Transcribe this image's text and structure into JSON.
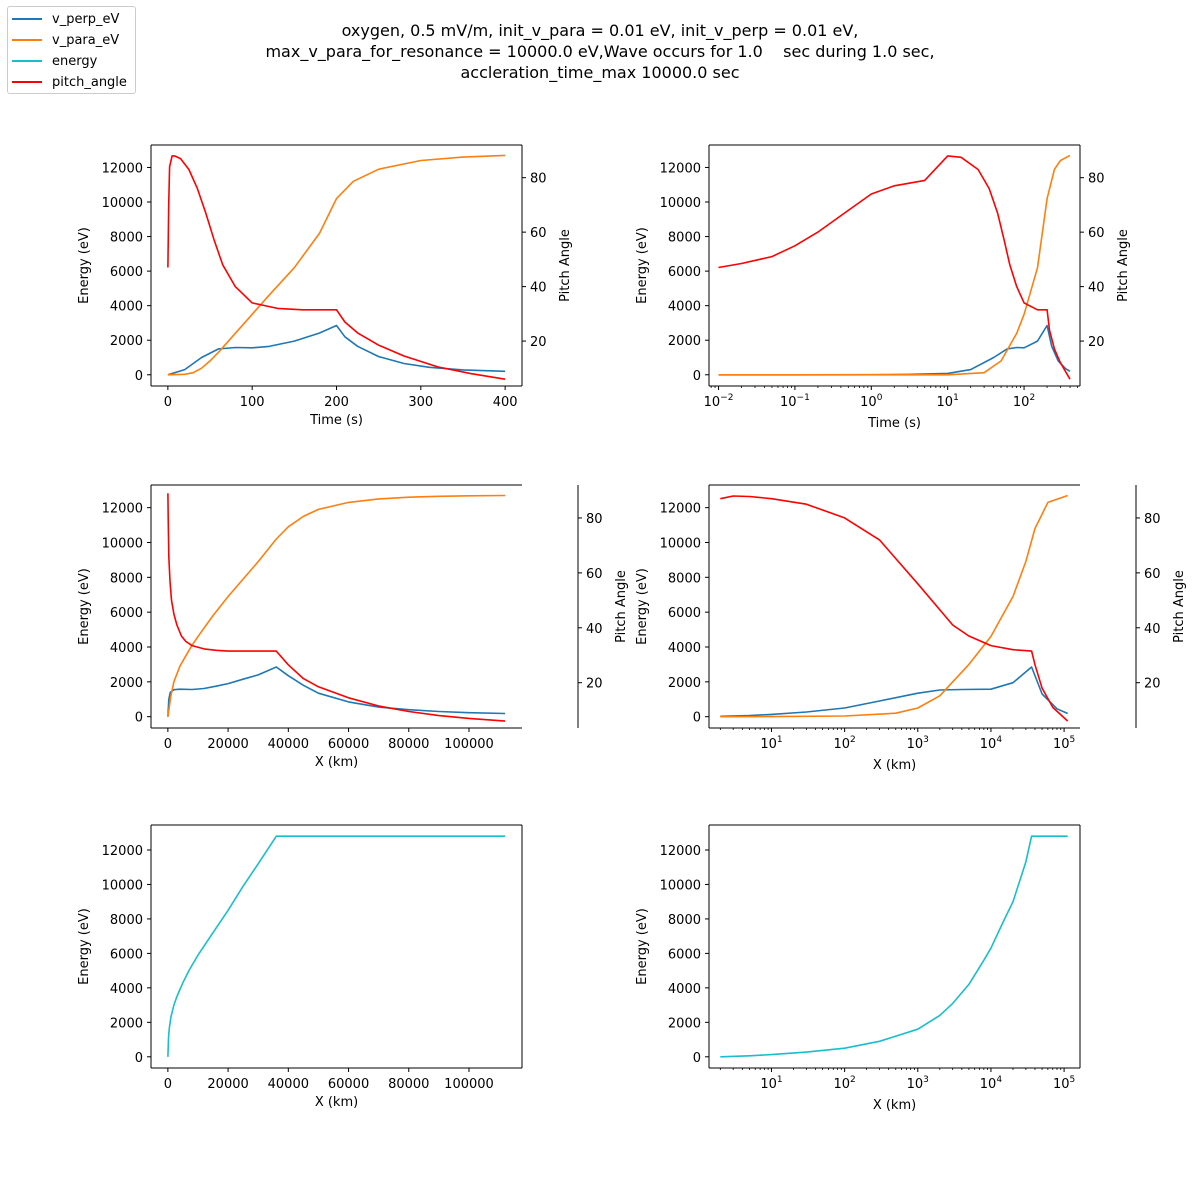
{
  "title_lines": [
    "oxygen, 0.5 mV/m, init_v_para = 0.01 eV, init_v_perp = 0.01 eV,",
    "max_v_para_for_resonance = 10000.0 eV,Wave occurs for 1.0    sec during 1.0 sec,",
    "accleration_time_max 10000.0 sec"
  ],
  "legend": [
    {
      "label": "v_perp_eV",
      "color": "#1f77b4"
    },
    {
      "label": "v_para_eV",
      "color": "#ff7f0e"
    },
    {
      "label": "energy",
      "color": "#17becf"
    },
    {
      "label": "pitch_angle",
      "color": "#ff0000"
    }
  ],
  "colors": {
    "v_perp": "#1f77b4",
    "v_para": "#ff7f0e",
    "energy": "#17becf",
    "pitch": "#ff0000"
  },
  "chart_data": [
    {
      "type": "line",
      "panel": "top-left",
      "xlabel": "Time (s)",
      "ylabel": "Energy (eV)",
      "y2label": "Pitch Angle",
      "xscale": "linear",
      "xlim": [
        -20,
        420
      ],
      "ylim": [
        -650,
        13300
      ],
      "y2lim": [
        3.5,
        92
      ],
      "xticks": [
        0,
        100,
        200,
        300,
        400
      ],
      "xticklabels": [
        "0",
        "100",
        "200",
        "300",
        "400"
      ],
      "yticks": [
        0,
        2000,
        4000,
        6000,
        8000,
        10000,
        12000
      ],
      "yticklabels": [
        "0",
        "2000",
        "4000",
        "6000",
        "8000",
        "10000",
        "12000"
      ],
      "y2ticks": [
        20,
        40,
        60,
        80
      ],
      "y2ticklabels": [
        "20",
        "40",
        "60",
        "80"
      ],
      "series": [
        {
          "key": "v_perp",
          "axis": "left",
          "x": [
            0,
            20,
            40,
            60,
            80,
            100,
            120,
            150,
            180,
            200,
            210,
            225,
            250,
            280,
            310,
            350,
            400
          ],
          "y": [
            0,
            300,
            1000,
            1500,
            1580,
            1560,
            1640,
            1950,
            2420,
            2850,
            2200,
            1650,
            1050,
            650,
            430,
            280,
            200
          ]
        },
        {
          "key": "v_para",
          "axis": "left",
          "x": [
            0,
            20,
            30,
            40,
            50,
            60,
            80,
            100,
            120,
            150,
            180,
            200,
            220,
            250,
            300,
            350,
            400
          ],
          "y": [
            0,
            30,
            120,
            380,
            800,
            1300,
            2400,
            3500,
            4600,
            6200,
            8200,
            10200,
            11200,
            11900,
            12400,
            12600,
            12700
          ]
        },
        {
          "key": "pitch",
          "axis": "right",
          "x": [
            0,
            1,
            2,
            5,
            8,
            15,
            25,
            35,
            45,
            55,
            65,
            80,
            100,
            130,
            160,
            195,
            200,
            210,
            225,
            250,
            280,
            320,
            360,
            400
          ],
          "y": [
            47,
            70,
            84,
            88,
            88,
            87,
            83,
            76,
            67,
            57,
            48,
            40,
            34,
            32,
            31.5,
            31.5,
            31.5,
            27,
            23,
            18.5,
            14.5,
            10.5,
            8,
            6
          ]
        }
      ]
    },
    {
      "type": "line",
      "panel": "top-right",
      "xlabel": "Time (s)",
      "ylabel": "Energy (eV)",
      "y2label": "Pitch Angle",
      "xscale": "log",
      "xlim": [
        0.0075,
        540
      ],
      "ylim": [
        -650,
        13300
      ],
      "y2lim": [
        3.5,
        92
      ],
      "xticks": [
        0.01,
        0.1,
        1,
        10,
        100
      ],
      "xticklabels": [
        "10^-2",
        "10^-1",
        "10^0",
        "10^1",
        "10^2"
      ],
      "yticks": [
        0,
        2000,
        4000,
        6000,
        8000,
        10000,
        12000
      ],
      "yticklabels": [
        "0",
        "2000",
        "4000",
        "6000",
        "8000",
        "10000",
        "12000"
      ],
      "y2ticks": [
        20,
        40,
        60,
        80
      ],
      "y2ticklabels": [
        "20",
        "40",
        "60",
        "80"
      ],
      "series": [
        {
          "key": "v_perp",
          "axis": "left",
          "x": [
            0.01,
            0.1,
            1,
            3,
            10,
            20,
            40,
            60,
            80,
            100,
            150,
            200,
            230,
            280,
            350,
            400
          ],
          "y": [
            0,
            0,
            5,
            20,
            80,
            300,
            1000,
            1500,
            1580,
            1560,
            1950,
            2850,
            1650,
            800,
            350,
            200
          ]
        },
        {
          "key": "v_para",
          "axis": "left",
          "x": [
            0.01,
            0.1,
            1,
            10,
            30,
            50,
            80,
            100,
            150,
            200,
            250,
            300,
            400
          ],
          "y": [
            0,
            0,
            0,
            0,
            120,
            800,
            2400,
            3500,
            6200,
            10200,
            11900,
            12400,
            12700
          ]
        },
        {
          "key": "pitch",
          "axis": "right",
          "x": [
            0.01,
            0.02,
            0.05,
            0.1,
            0.2,
            0.5,
            1,
            2,
            5,
            10,
            15,
            25,
            35,
            45,
            55,
            65,
            80,
            100,
            150,
            195,
            200,
            215,
            250,
            300,
            400
          ],
          "y": [
            47,
            48.5,
            51,
            55,
            60,
            68,
            74,
            77,
            79,
            88,
            87.5,
            83,
            76,
            67,
            57,
            48,
            40,
            34,
            31.5,
            31.5,
            31.5,
            24,
            17,
            12,
            6
          ]
        }
      ]
    },
    {
      "type": "line",
      "panel": "middle-left",
      "xlabel": "X (km)",
      "ylabel": "Energy (eV)",
      "y2label": "Pitch Angle",
      "xscale": "linear",
      "xlim": [
        -5600,
        117600
      ],
      "ylim": [
        -650,
        13300
      ],
      "y2lim": [
        3.5,
        92
      ],
      "xticks": [
        0,
        20000,
        40000,
        60000,
        80000,
        100000
      ],
      "xticklabels": [
        "0",
        "20000",
        "40000",
        "60000",
        "80000",
        "100000"
      ],
      "yticks": [
        0,
        2000,
        4000,
        6000,
        8000,
        10000,
        12000
      ],
      "yticklabels": [
        "0",
        "2000",
        "4000",
        "6000",
        "8000",
        "10000",
        "12000"
      ],
      "y2ticks": [
        20,
        40,
        60,
        80
      ],
      "y2ticklabels": [
        "20",
        "40",
        "60",
        "80"
      ],
      "series": [
        {
          "key": "v_perp",
          "axis": "left",
          "x": [
            0,
            300,
            800,
            2000,
            4000,
            8000,
            12000,
            16000,
            20000,
            25000,
            30000,
            36000,
            40000,
            45000,
            50000,
            60000,
            70000,
            80000,
            90000,
            100000,
            112000
          ],
          "y": [
            0,
            1000,
            1400,
            1550,
            1580,
            1560,
            1620,
            1750,
            1900,
            2150,
            2400,
            2850,
            2350,
            1800,
            1350,
            850,
            550,
            400,
            300,
            230,
            180
          ]
        },
        {
          "key": "v_para",
          "axis": "left",
          "x": [
            0,
            1000,
            2000,
            4000,
            6000,
            8000,
            10000,
            15000,
            20000,
            25000,
            30000,
            36000,
            40000,
            45000,
            50000,
            60000,
            70000,
            80000,
            90000,
            100000,
            112000
          ],
          "y": [
            0,
            1200,
            2000,
            2900,
            3500,
            4100,
            4600,
            5800,
            6900,
            7900,
            8900,
            10200,
            10900,
            11500,
            11900,
            12300,
            12500,
            12600,
            12650,
            12680,
            12700
          ]
        },
        {
          "key": "pitch",
          "axis": "right",
          "x": [
            0,
            100,
            300,
            700,
            1200,
            2000,
            3000,
            4500,
            6000,
            8000,
            12000,
            16000,
            20000,
            30000,
            36000,
            40000,
            45000,
            50000,
            60000,
            70000,
            80000,
            90000,
            100000,
            112000
          ],
          "y": [
            89,
            80,
            66,
            57,
            50,
            45,
            41,
            37,
            35,
            33.5,
            32.3,
            31.8,
            31.5,
            31.5,
            31.5,
            26.5,
            21.5,
            18.5,
            14.5,
            11.5,
            9.5,
            8,
            7,
            6
          ]
        }
      ]
    },
    {
      "type": "line",
      "panel": "middle-right",
      "xlabel": "X (km)",
      "ylabel": "Energy (eV)",
      "y2label": "Pitch Angle",
      "xscale": "log",
      "xlim": [
        1.4,
        165000
      ],
      "ylim": [
        -650,
        13300
      ],
      "y2lim": [
        3.5,
        92
      ],
      "xticks": [
        10,
        100,
        1000,
        10000,
        100000
      ],
      "xticklabels": [
        "10^1",
        "10^2",
        "10^3",
        "10^4",
        "10^5"
      ],
      "yticks": [
        0,
        2000,
        4000,
        6000,
        8000,
        10000,
        12000
      ],
      "yticklabels": [
        "0",
        "2000",
        "4000",
        "6000",
        "8000",
        "10000",
        "12000"
      ],
      "y2ticks": [
        20,
        40,
        60,
        80
      ],
      "y2ticklabels": [
        "20",
        "40",
        "60",
        "80"
      ],
      "series": [
        {
          "key": "v_perp",
          "axis": "left",
          "x": [
            2,
            5,
            10,
            30,
            100,
            300,
            1000,
            2000,
            4000,
            10000,
            20000,
            36000,
            50000,
            80000,
            112000
          ],
          "y": [
            20,
            70,
            130,
            270,
            500,
            900,
            1350,
            1530,
            1560,
            1580,
            1950,
            2850,
            1300,
            450,
            180
          ]
        },
        {
          "key": "v_para",
          "axis": "left",
          "x": [
            2,
            10,
            100,
            500,
            1000,
            2000,
            5000,
            10000,
            20000,
            30000,
            40000,
            60000,
            112000
          ],
          "y": [
            0,
            5,
            40,
            200,
            500,
            1200,
            3000,
            4600,
            6900,
            8900,
            10800,
            12300,
            12700
          ]
        },
        {
          "key": "pitch",
          "axis": "right",
          "x": [
            2,
            3,
            5,
            10,
            30,
            100,
            300,
            1000,
            3000,
            5000,
            10000,
            20000,
            36000,
            40000,
            50000,
            70000,
            112000
          ],
          "y": [
            87,
            88,
            87.8,
            87,
            85,
            80,
            72,
            56,
            41,
            37,
            33.5,
            32,
            31.5,
            26.5,
            18,
            11,
            6
          ]
        }
      ]
    },
    {
      "type": "line",
      "panel": "bottom-left",
      "xlabel": "X (km)",
      "ylabel": "Energy (eV)",
      "xscale": "linear",
      "xlim": [
        -5600,
        117600
      ],
      "ylim": [
        -650,
        13450
      ],
      "xticks": [
        0,
        20000,
        40000,
        60000,
        80000,
        100000
      ],
      "xticklabels": [
        "0",
        "20000",
        "40000",
        "60000",
        "80000",
        "100000"
      ],
      "yticks": [
        0,
        2000,
        4000,
        6000,
        8000,
        10000,
        12000
      ],
      "yticklabels": [
        "0",
        "2000",
        "4000",
        "6000",
        "8000",
        "10000",
        "12000"
      ],
      "series": [
        {
          "key": "energy",
          "axis": "left",
          "x": [
            0,
            200,
            500,
            1000,
            2000,
            3000,
            5000,
            7000,
            10000,
            15000,
            20000,
            25000,
            30000,
            36000,
            50000,
            80000,
            112000
          ],
          "y": [
            0,
            1100,
            1700,
            2300,
            3000,
            3500,
            4300,
            5000,
            5900,
            7200,
            8500,
            9900,
            11200,
            12800,
            12800,
            12800,
            12800
          ]
        }
      ]
    },
    {
      "type": "line",
      "panel": "bottom-right",
      "xlabel": "X (km)",
      "ylabel": "Energy (eV)",
      "xscale": "log",
      "xlim": [
        1.4,
        165000
      ],
      "ylim": [
        -650,
        13450
      ],
      "xticks": [
        10,
        100,
        1000,
        10000,
        100000
      ],
      "xticklabels": [
        "10^1",
        "10^2",
        "10^3",
        "10^4",
        "10^5"
      ],
      "yticks": [
        0,
        2000,
        4000,
        6000,
        8000,
        10000,
        12000
      ],
      "yticklabels": [
        "0",
        "2000",
        "4000",
        "6000",
        "8000",
        "10000",
        "12000"
      ],
      "series": [
        {
          "key": "energy",
          "axis": "left",
          "x": [
            2,
            5,
            10,
            30,
            100,
            300,
            1000,
            2000,
            3000,
            5000,
            8000,
            10000,
            15000,
            20000,
            30000,
            36000,
            50000,
            112000
          ],
          "y": [
            0,
            60,
            130,
            270,
            500,
            900,
            1600,
            2400,
            3100,
            4200,
            5600,
            6300,
            7900,
            9000,
            11300,
            12800,
            12800,
            12800
          ]
        }
      ]
    }
  ]
}
